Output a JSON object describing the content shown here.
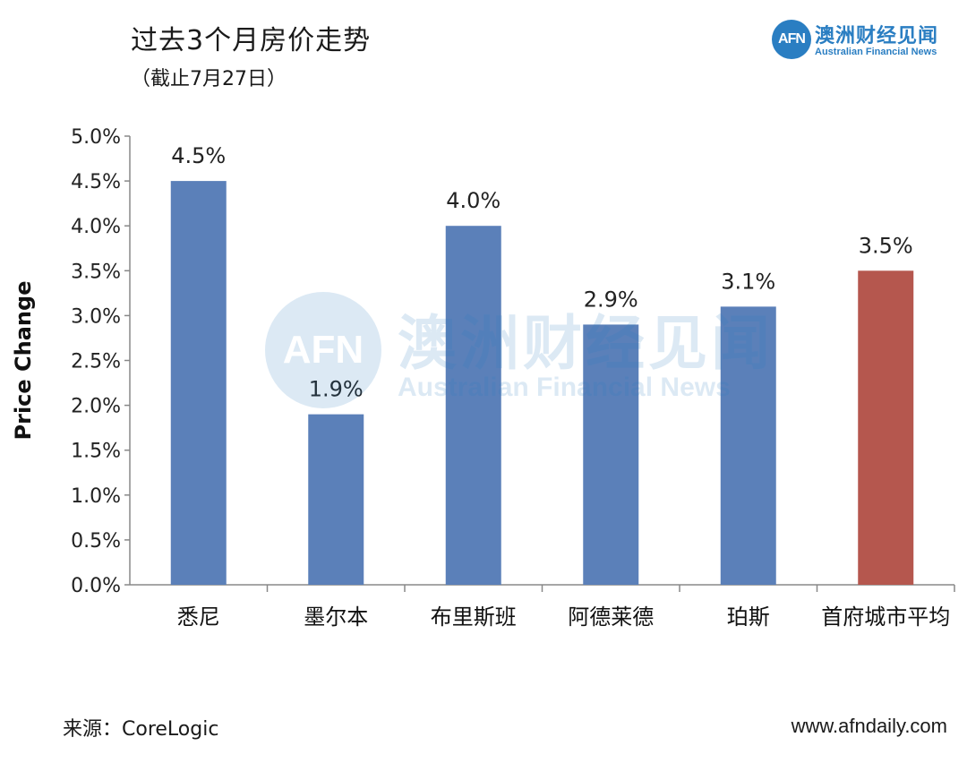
{
  "header": {
    "title": "过去3个月房价走势",
    "subtitle": "（截止7月27日）"
  },
  "brand": {
    "logo_text": "AFN",
    "name_cn": "澳洲财经见闻",
    "name_en": "Australian Financial News"
  },
  "watermark": {
    "logo_text": "AFN",
    "name_cn": "澳洲财经见闻",
    "name_en": "Australian Financial News"
  },
  "footer": {
    "source": "来源：CoreLogic",
    "website": "www.afndaily.com"
  },
  "colors": {
    "primary_bar": "#5b80b9",
    "highlight_bar": "#b5574e",
    "brand": "#2a7ec2"
  },
  "chart_data": {
    "type": "bar",
    "title": "过去3个月房价走势",
    "subtitle": "（截止7月27日）",
    "ylabel": "Price Change",
    "xlabel": "",
    "ylim": [
      0,
      5.0
    ],
    "yticks": [
      "0.0%",
      "0.5%",
      "1.0%",
      "1.5%",
      "2.0%",
      "2.5%",
      "3.0%",
      "3.5%",
      "4.0%",
      "4.5%",
      "5.0%"
    ],
    "categories": [
      "悉尼",
      "墨尔本",
      "布里斯班",
      "阿德莱德",
      "珀斯",
      "首府城市平均"
    ],
    "values": [
      4.5,
      1.9,
      4.0,
      2.9,
      3.1,
      3.5
    ],
    "value_labels": [
      "4.5%",
      "1.9%",
      "4.0%",
      "2.9%",
      "3.1%",
      "3.5%"
    ],
    "bar_colors": [
      "#5b80b9",
      "#5b80b9",
      "#5b80b9",
      "#5b80b9",
      "#5b80b9",
      "#b5574e"
    ],
    "grid": false
  }
}
